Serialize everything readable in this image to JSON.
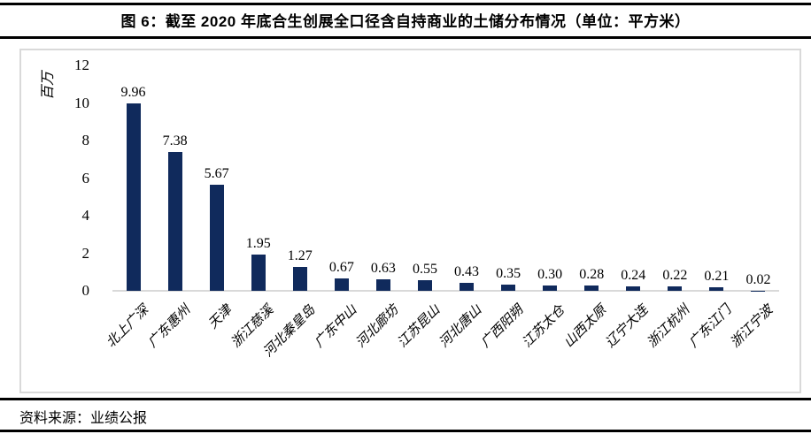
{
  "header": {
    "title": "图 6：截至 2020 年底合生创展全口径含自持商业的土储分布情况（单位：平方米）"
  },
  "footer": {
    "source": "资料来源：业绩公报"
  },
  "chart_data": {
    "type": "bar",
    "title": "截至 2020 年底合生创展全口径含自持商业的土储分布情况",
    "unit": "平方米",
    "ylabel": "百万",
    "xlabel": "",
    "categories": [
      "北上广深",
      "广东惠州",
      "天津",
      "浙江慈溪",
      "河北秦皇岛",
      "广东中山",
      "河北廊坊",
      "江苏昆山",
      "河北唐山",
      "广西阳朔",
      "江苏太仓",
      "山西太原",
      "辽宁大连",
      "浙江杭州",
      "广东江门",
      "浙江宁波"
    ],
    "values": [
      9.96,
      7.38,
      5.67,
      1.95,
      1.27,
      0.67,
      0.63,
      0.55,
      0.43,
      0.35,
      0.3,
      0.28,
      0.24,
      0.22,
      0.21,
      0.02
    ],
    "value_labels": [
      "9.96",
      "7.38",
      "5.67",
      "1.95",
      "1.27",
      "0.67",
      "0.63",
      "0.55",
      "0.43",
      "0.35",
      "0.30",
      "0.28",
      "0.24",
      "0.22",
      "0.21",
      "0.02"
    ],
    "yticks": [
      0,
      2,
      4,
      6,
      8,
      10,
      12
    ],
    "ylim": [
      0,
      12
    ],
    "grid": false,
    "legend_position": "none",
    "bar_color": "#102a5c",
    "axis_color": "#d9d9d9"
  }
}
